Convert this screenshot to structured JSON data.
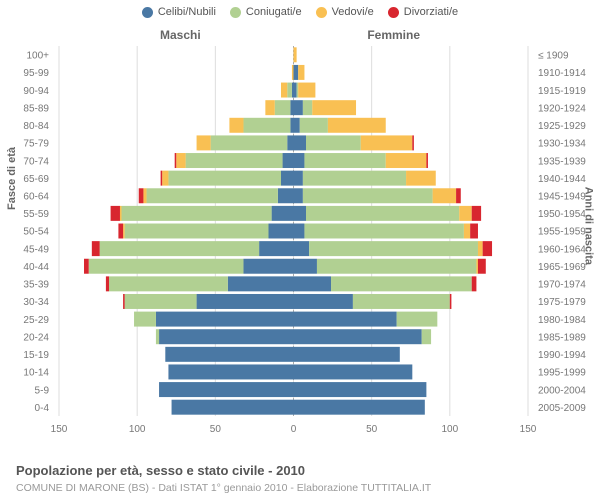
{
  "legend": [
    {
      "label": "Celibi/Nubili",
      "color": "#4a78a4"
    },
    {
      "label": "Coniugati/e",
      "color": "#b1d092"
    },
    {
      "label": "Vedovi/e",
      "color": "#f9c053"
    },
    {
      "label": "Divorziati/e",
      "color": "#d8262f"
    }
  ],
  "col_left": "Maschi",
  "col_right": "Femmine",
  "ylabel_left": "Fasce di età",
  "ylabel_right": "Anni di nascita",
  "title": "Popolazione per età, sesso e stato civile - 2010",
  "subtitle": "COMUNE DI MARONE (BS) - Dati ISTAT 1° gennaio 2010 - Elaborazione TUTTITALIA.IT",
  "chart": {
    "type": "population-pyramid",
    "background_color": "#ffffff",
    "grid_color": "#dddddd",
    "axis_color": "#aaaaaa",
    "label_color": "#777777",
    "xlim": 150,
    "xticks": [
      150,
      100,
      50,
      0,
      50,
      100,
      150
    ],
    "bar_gap_ratio": 0.15,
    "colors": {
      "single": "#4a78a4",
      "married": "#b1d092",
      "widowed": "#f9c053",
      "divorced": "#d8262f"
    },
    "rows": [
      {
        "age": "100+",
        "year": "≤ 1909",
        "m": {
          "s": 0,
          "m": 0,
          "w": 0,
          "d": 0
        },
        "f": {
          "s": 0,
          "m": 0,
          "w": 2,
          "d": 0
        }
      },
      {
        "age": "95-99",
        "year": "1910-1914",
        "m": {
          "s": 0,
          "m": 0,
          "w": 1,
          "d": 0
        },
        "f": {
          "s": 3,
          "m": 0,
          "w": 4,
          "d": 0
        }
      },
      {
        "age": "90-94",
        "year": "1915-1919",
        "m": {
          "s": 1,
          "m": 3,
          "w": 4,
          "d": 0
        },
        "f": {
          "s": 2,
          "m": 1,
          "w": 11,
          "d": 0
        }
      },
      {
        "age": "85-89",
        "year": "1920-1924",
        "m": {
          "s": 2,
          "m": 10,
          "w": 6,
          "d": 0
        },
        "f": {
          "s": 6,
          "m": 6,
          "w": 28,
          "d": 0
        }
      },
      {
        "age": "80-84",
        "year": "1925-1929",
        "m": {
          "s": 2,
          "m": 30,
          "w": 9,
          "d": 0
        },
        "f": {
          "s": 4,
          "m": 18,
          "w": 37,
          "d": 0
        }
      },
      {
        "age": "75-79",
        "year": "1930-1934",
        "m": {
          "s": 4,
          "m": 49,
          "w": 9,
          "d": 0
        },
        "f": {
          "s": 8,
          "m": 35,
          "w": 33,
          "d": 1
        }
      },
      {
        "age": "70-74",
        "year": "1935-1939",
        "m": {
          "s": 7,
          "m": 62,
          "w": 6,
          "d": 1
        },
        "f": {
          "s": 7,
          "m": 52,
          "w": 26,
          "d": 1
        }
      },
      {
        "age": "65-69",
        "year": "1940-1944",
        "m": {
          "s": 8,
          "m": 72,
          "w": 4,
          "d": 1
        },
        "f": {
          "s": 6,
          "m": 66,
          "w": 19,
          "d": 0
        }
      },
      {
        "age": "60-64",
        "year": "1945-1949",
        "m": {
          "s": 10,
          "m": 84,
          "w": 2,
          "d": 3
        },
        "f": {
          "s": 6,
          "m": 83,
          "w": 15,
          "d": 3
        }
      },
      {
        "age": "55-59",
        "year": "1950-1954",
        "m": {
          "s": 14,
          "m": 96,
          "w": 1,
          "d": 6
        },
        "f": {
          "s": 8,
          "m": 98,
          "w": 8,
          "d": 6
        }
      },
      {
        "age": "50-54",
        "year": "1955-1959",
        "m": {
          "s": 16,
          "m": 92,
          "w": 1,
          "d": 3
        },
        "f": {
          "s": 7,
          "m": 102,
          "w": 4,
          "d": 5
        }
      },
      {
        "age": "45-49",
        "year": "1960-1964",
        "m": {
          "s": 22,
          "m": 102,
          "w": 0,
          "d": 5
        },
        "f": {
          "s": 10,
          "m": 108,
          "w": 3,
          "d": 6
        }
      },
      {
        "age": "40-44",
        "year": "1965-1969",
        "m": {
          "s": 32,
          "m": 99,
          "w": 0,
          "d": 3
        },
        "f": {
          "s": 15,
          "m": 102,
          "w": 1,
          "d": 5
        }
      },
      {
        "age": "35-39",
        "year": "1970-1974",
        "m": {
          "s": 42,
          "m": 76,
          "w": 0,
          "d": 2
        },
        "f": {
          "s": 24,
          "m": 90,
          "w": 0,
          "d": 3
        }
      },
      {
        "age": "30-34",
        "year": "1975-1979",
        "m": {
          "s": 62,
          "m": 46,
          "w": 0,
          "d": 1
        },
        "f": {
          "s": 38,
          "m": 62,
          "w": 0,
          "d": 1
        }
      },
      {
        "age": "25-29",
        "year": "1980-1984",
        "m": {
          "s": 88,
          "m": 14,
          "w": 0,
          "d": 0
        },
        "f": {
          "s": 66,
          "m": 26,
          "w": 0,
          "d": 0
        }
      },
      {
        "age": "20-24",
        "year": "1985-1989",
        "m": {
          "s": 86,
          "m": 2,
          "w": 0,
          "d": 0
        },
        "f": {
          "s": 82,
          "m": 6,
          "w": 0,
          "d": 0
        }
      },
      {
        "age": "15-19",
        "year": "1990-1994",
        "m": {
          "s": 82,
          "m": 0,
          "w": 0,
          "d": 0
        },
        "f": {
          "s": 68,
          "m": 0,
          "w": 0,
          "d": 0
        }
      },
      {
        "age": "10-14",
        "year": "1995-1999",
        "m": {
          "s": 80,
          "m": 0,
          "w": 0,
          "d": 0
        },
        "f": {
          "s": 76,
          "m": 0,
          "w": 0,
          "d": 0
        }
      },
      {
        "age": "5-9",
        "year": "2000-2004",
        "m": {
          "s": 86,
          "m": 0,
          "w": 0,
          "d": 0
        },
        "f": {
          "s": 85,
          "m": 0,
          "w": 0,
          "d": 0
        }
      },
      {
        "age": "0-4",
        "year": "2005-2009",
        "m": {
          "s": 78,
          "m": 0,
          "w": 0,
          "d": 0
        },
        "f": {
          "s": 84,
          "m": 0,
          "w": 0,
          "d": 0
        }
      }
    ]
  }
}
